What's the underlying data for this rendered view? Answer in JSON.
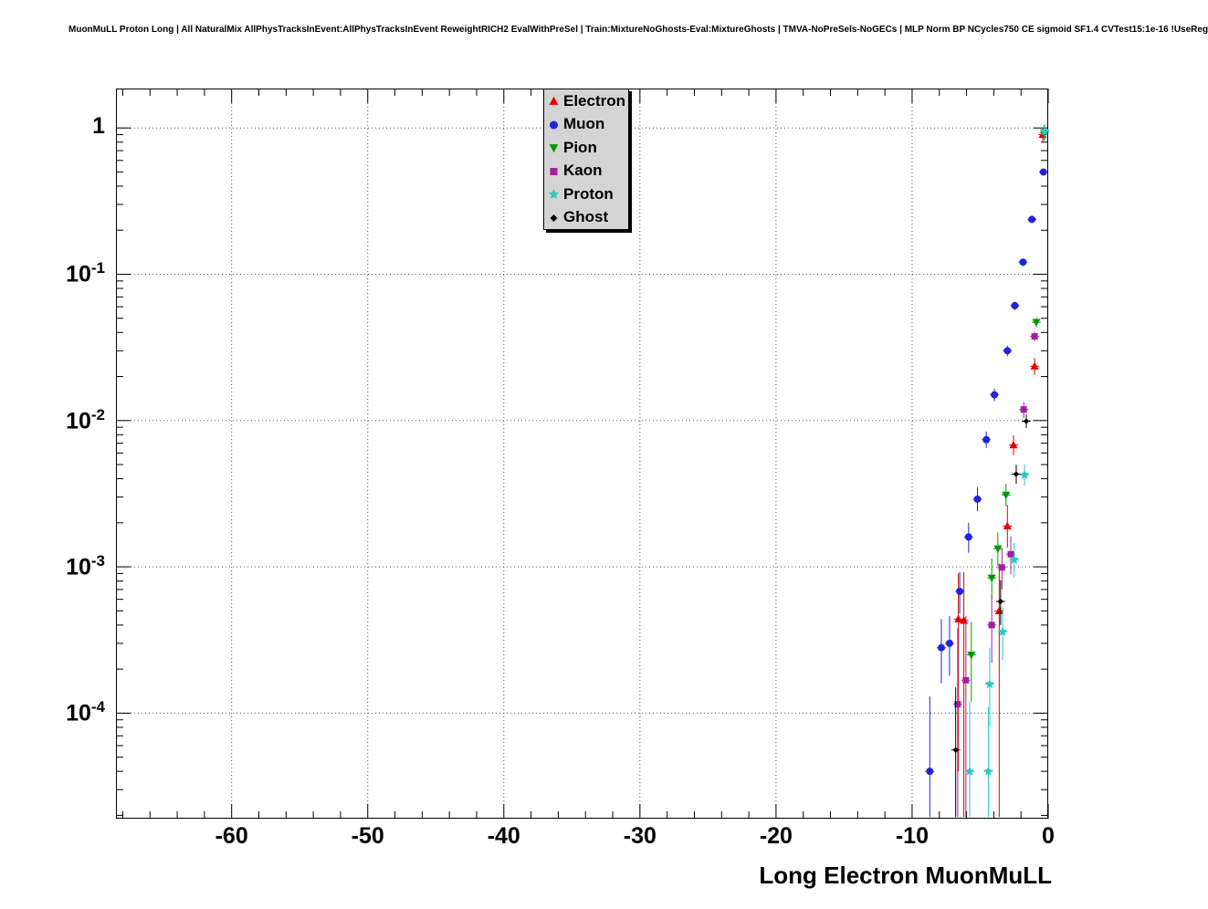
{
  "title": "MuonMuLL Proton Long | All NaturalMix AllPhysTracksInEvent:AllPhysTracksInEvent ReweightRICH2 EvalWithPreSel | Train:MixtureNoGhosts-Eval:MixtureGhosts | TMVA-NoPreSels-NoGECs | MLP Norm BP NCycles750 CE sigmoid SF1.4 CVTest15:1e-16 !UseReg",
  "chart_data": {
    "type": "scatter",
    "title": "",
    "xlabel": "Long Electron MuonMuLL",
    "ylabel": "",
    "ylog": true,
    "xlim": [
      -68.5,
      0
    ],
    "ylim": [
      1.9e-05,
      1.86
    ],
    "x_major_ticks": [
      -60,
      -50,
      -40,
      -30,
      -20,
      -10,
      0
    ],
    "x_minor_step": 2,
    "y_tick_exponents": [
      0,
      -1,
      -2,
      -3,
      -4
    ],
    "grid": "dotted",
    "xerr": 0.33,
    "legend_position": "top-center",
    "series": [
      {
        "name": "Electron",
        "marker": "triangle-up",
        "color": "#e60000",
        "points": [
          {
            "x": -0.4,
            "y": 0.9
          },
          {
            "x": -1.0,
            "y": 0.0235,
            "lo": 0.0205,
            "hi": 0.0268
          },
          {
            "x": -2.55,
            "y": 0.0068,
            "lo": 0.0058,
            "hi": 0.0079
          },
          {
            "x": -3.0,
            "y": 0.0019,
            "lo": 0.00135,
            "hi": 0.00265
          },
          {
            "x": -3.6,
            "y": 0.0005,
            "lo": 1.95e-05,
            "hi": 0.00105
          },
          {
            "x": -6.2,
            "y": 0.00043,
            "lo": 1.95e-05,
            "hi": 0.00092
          },
          {
            "x": -6.6,
            "y": 0.00044,
            "lo": 4e-05,
            "hi": 0.0009
          }
        ]
      },
      {
        "name": "Muon",
        "marker": "circle",
        "color": "#2222dd",
        "points": [
          {
            "x": -0.35,
            "y": 0.5,
            "lo": 0.48,
            "hi": 0.52
          },
          {
            "x": -1.2,
            "y": 0.237,
            "lo": 0.225,
            "hi": 0.25
          },
          {
            "x": -1.85,
            "y": 0.121,
            "lo": 0.114,
            "hi": 0.128
          },
          {
            "x": -2.45,
            "y": 0.061,
            "lo": 0.057,
            "hi": 0.065
          },
          {
            "x": -3.0,
            "y": 0.03,
            "lo": 0.0275,
            "hi": 0.0325
          },
          {
            "x": -3.95,
            "y": 0.015,
            "lo": 0.0136,
            "hi": 0.0165
          },
          {
            "x": -4.55,
            "y": 0.0074,
            "lo": 0.0065,
            "hi": 0.0084
          },
          {
            "x": -5.2,
            "y": 0.0029,
            "lo": 0.0024,
            "hi": 0.0035
          },
          {
            "x": -5.85,
            "y": 0.0016,
            "lo": 0.00125,
            "hi": 0.002
          },
          {
            "x": -6.5,
            "y": 0.00068,
            "lo": 0.00048,
            "hi": 0.00092
          },
          {
            "x": -7.25,
            "y": 0.0003,
            "lo": 0.00018,
            "hi": 0.00046
          },
          {
            "x": -7.85,
            "y": 0.00028,
            "lo": 0.00016,
            "hi": 0.00044
          },
          {
            "x": -8.7,
            "y": 4e-05,
            "lo": 1.95e-05,
            "hi": 0.00013
          }
        ]
      },
      {
        "name": "Pion",
        "marker": "triangle-down",
        "color": "#009900",
        "points": [
          {
            "x": -0.3,
            "y": 0.93
          },
          {
            "x": -0.87,
            "y": 0.047,
            "lo": 0.0435,
            "hi": 0.0505
          },
          {
            "x": -3.1,
            "y": 0.0031,
            "lo": 0.0026,
            "hi": 0.0037
          },
          {
            "x": -3.7,
            "y": 0.00133,
            "lo": 0.00101,
            "hi": 0.00172
          },
          {
            "x": -4.15,
            "y": 0.00084,
            "lo": 0.0006,
            "hi": 0.00114
          },
          {
            "x": -5.65,
            "y": 0.00025,
            "lo": 0.00012,
            "hi": 0.00042
          }
        ]
      },
      {
        "name": "Kaon",
        "marker": "square",
        "color": "#a020a0",
        "points": [
          {
            "x": -1.0,
            "y": 0.0376,
            "lo": 0.035,
            "hi": 0.0405
          },
          {
            "x": -1.8,
            "y": 0.0119,
            "lo": 0.0104,
            "hi": 0.0134
          },
          {
            "x": -2.75,
            "y": 0.00122,
            "lo": 0.00089,
            "hi": 0.00162
          },
          {
            "x": -3.4,
            "y": 0.00099,
            "lo": 0.0007,
            "hi": 0.00135
          },
          {
            "x": -4.15,
            "y": 0.0004,
            "lo": 0.00022,
            "hi": 0.00064
          },
          {
            "x": -6.05,
            "y": 0.000168,
            "lo": 1.95e-05,
            "hi": 0.00046
          },
          {
            "x": -6.65,
            "y": 0.000115,
            "lo": 1.95e-05,
            "hi": 0.00038
          }
        ]
      },
      {
        "name": "Proton",
        "marker": "star",
        "color": "#2fc6c6",
        "points": [
          {
            "x": -0.25,
            "y": 0.95
          },
          {
            "x": -1.74,
            "y": 0.00425,
            "lo": 0.0036,
            "hi": 0.005
          },
          {
            "x": -2.5,
            "y": 0.00112,
            "lo": 0.00084,
            "hi": 0.00146
          },
          {
            "x": -3.35,
            "y": 0.00036,
            "lo": 0.00023,
            "hi": 0.00053
          },
          {
            "x": -4.3,
            "y": 0.000158,
            "lo": 8e-05,
            "hi": 0.00028
          },
          {
            "x": -4.4,
            "y": 4e-05,
            "lo": 1.95e-05,
            "hi": 0.00011
          },
          {
            "x": -5.77,
            "y": 4e-05,
            "lo": 1.95e-05,
            "hi": 0.00012
          }
        ]
      },
      {
        "name": "Ghost",
        "marker": "diamond",
        "color": "#000000",
        "points": [
          {
            "x": -1.61,
            "y": 0.0099,
            "lo": 0.0089,
            "hi": 0.011
          },
          {
            "x": -2.35,
            "y": 0.0043,
            "lo": 0.0037,
            "hi": 0.005
          },
          {
            "x": -3.5,
            "y": 0.00058,
            "lo": 0.0004,
            "hi": 0.00081
          },
          {
            "x": -6.8,
            "y": 5.6e-05,
            "lo": 1.95e-05,
            "hi": 0.00015
          }
        ]
      }
    ]
  }
}
